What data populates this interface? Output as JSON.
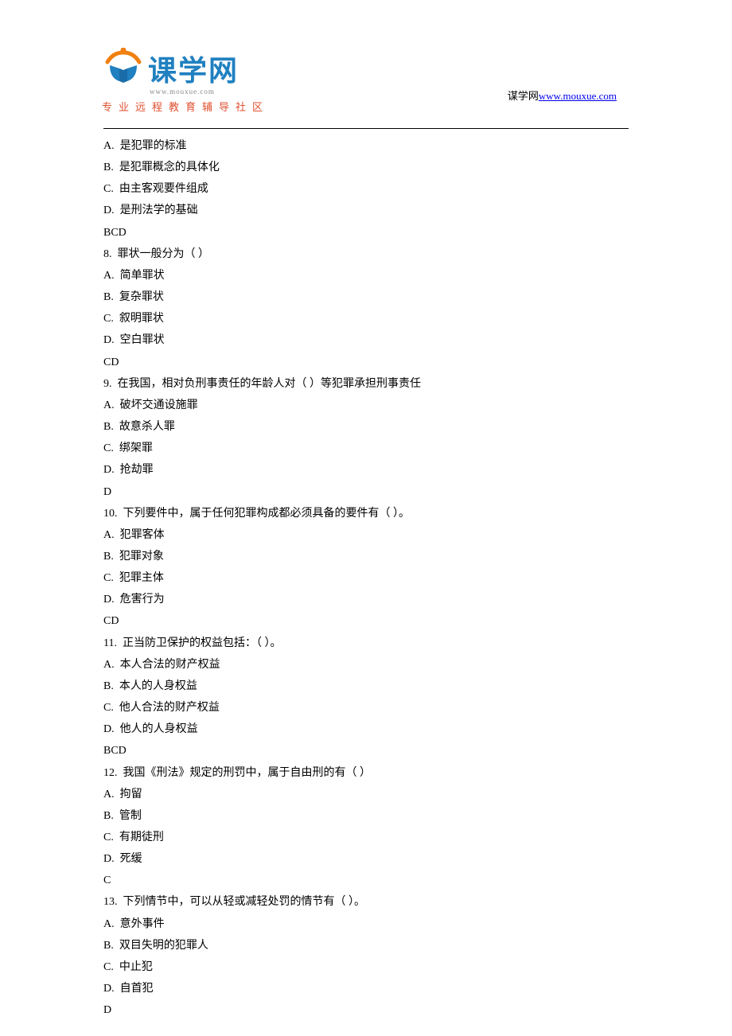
{
  "header": {
    "logo_chars": "课学网",
    "logo_sub": "www.mouxue.com",
    "tagline": "专业远程教育辅导社区",
    "site_label": "谋学网",
    "site_url": "www.mouxue.com",
    "site_href": "http://www.mouxue.com"
  },
  "colors": {
    "logo_blue": "#2080c0",
    "logo_orange": "#f08010",
    "tagline_red": "#e05030",
    "link_blue": "#0000ee",
    "text_black": "#000000",
    "bg_white": "#ffffff"
  },
  "questions": [
    {
      "options": [
        "A.  是犯罪的标准",
        "B.  是犯罪概念的具体化",
        "C.  由主客观要件组成",
        "D.  是刑法学的基础"
      ],
      "answer": "BCD"
    },
    {
      "number": "8.",
      "stem": "  罪状一般分为（ ）",
      "options": [
        "A.  简单罪状",
        "B.  复杂罪状",
        "C.  叙明罪状",
        "D.  空白罪状"
      ],
      "answer": "CD"
    },
    {
      "number": "9.",
      "stem": "  在我国，相对负刑事责任的年龄人对（ ）等犯罪承担刑事责任",
      "options": [
        "A.  破坏交通设施罪",
        "B.  故意杀人罪",
        "C.  绑架罪",
        "D.  抢劫罪"
      ],
      "answer": "D"
    },
    {
      "number": "10.",
      "stem": "  下列要件中，属于任何犯罪构成都必须具备的要件有（ ）。",
      "options": [
        "A.  犯罪客体",
        "B.  犯罪对象",
        "C.  犯罪主体",
        "D.  危害行为"
      ],
      "answer": "CD"
    },
    {
      "number": "11.",
      "stem": "  正当防卫保护的权益包括：（ ）。",
      "options": [
        "A.  本人合法的财产权益",
        "B.  本人的人身权益",
        "C.  他人合法的财产权益",
        "D.  他人的人身权益"
      ],
      "answer": "BCD"
    },
    {
      "number": "12.",
      "stem": "  我国《刑法》规定的刑罚中，属于自由刑的有（ ）",
      "options": [
        "A.  拘留",
        "B.  管制",
        "C.  有期徒刑",
        "D.  死缓"
      ],
      "answer": "C"
    },
    {
      "number": "13.",
      "stem": "  下列情节中，可以从轻或减轻处罚的情节有（ ）。",
      "options": [
        "A.  意外事件",
        "B.  双目失明的犯罪人",
        "C.  中止犯",
        "D.  自首犯"
      ],
      "answer": "D"
    }
  ]
}
